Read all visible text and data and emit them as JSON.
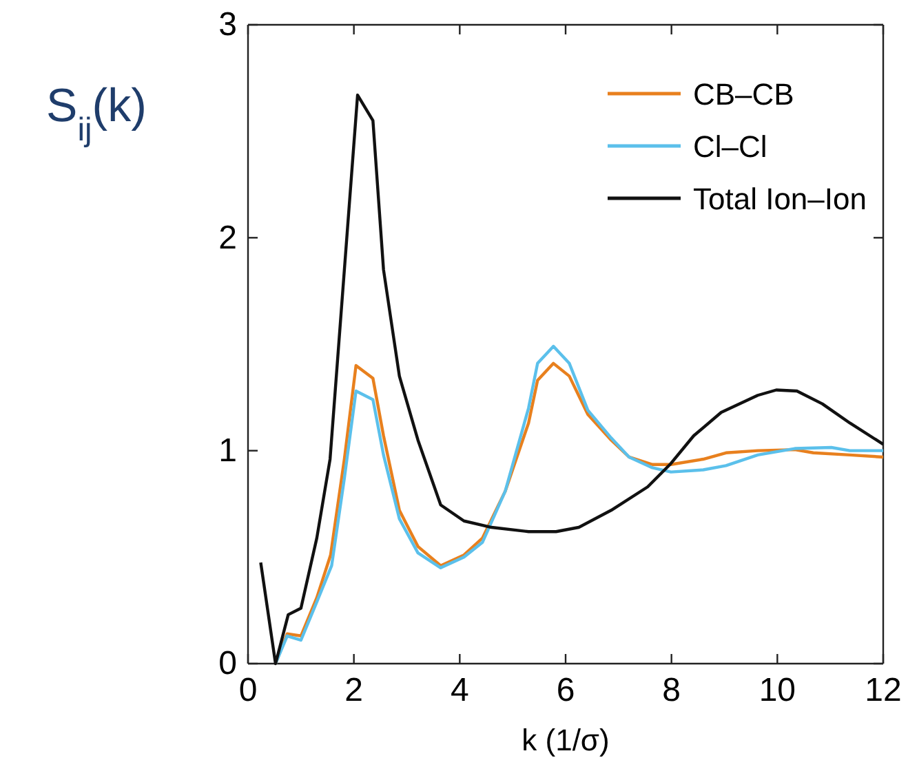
{
  "chart_data": {
    "type": "line",
    "ylabel": "S$_{ij}$(k)",
    "xlabel": "k (1/σ)",
    "xlim": [
      0,
      12
    ],
    "ylim": [
      0,
      3
    ],
    "xticks": [
      0,
      2,
      4,
      6,
      8,
      10,
      12
    ],
    "yticks": [
      0,
      1,
      2,
      3
    ],
    "legend": "top right",
    "grid": false,
    "line_style": "solid",
    "marker": "none",
    "series": [
      {
        "name": "CB–CB",
        "color": "#e8801e",
        "x": [
          0.52,
          0.74,
          1.0,
          1.3,
          1.56,
          1.82,
          2.04,
          2.36,
          2.56,
          2.86,
          3.21,
          3.64,
          4.08,
          4.43,
          4.86,
          5.3,
          5.47,
          5.77,
          6.07,
          6.42,
          6.86,
          7.2,
          7.64,
          7.99,
          8.6,
          9.03,
          9.63,
          10.33,
          10.68,
          11.37,
          12
        ],
        "values": [
          0,
          0.14,
          0.13,
          0.31,
          0.51,
          0.96,
          1.4,
          1.34,
          1.07,
          0.72,
          0.55,
          0.46,
          0.51,
          0.59,
          0.81,
          1.13,
          1.33,
          1.41,
          1.35,
          1.17,
          1.05,
          0.97,
          0.935,
          0.935,
          0.96,
          0.99,
          1.0,
          1.005,
          0.99,
          0.98,
          0.97
        ]
      },
      {
        "name": "Cl–Cl",
        "color": "#5bc0eb",
        "x": [
          0.52,
          0.74,
          1.0,
          1.3,
          1.58,
          1.82,
          2.04,
          2.36,
          2.56,
          2.86,
          3.21,
          3.64,
          4.08,
          4.43,
          4.86,
          5.3,
          5.47,
          5.77,
          6.07,
          6.42,
          6.86,
          7.2,
          7.64,
          7.99,
          8.6,
          9.03,
          9.63,
          10.33,
          11.02,
          11.37,
          12
        ],
        "values": [
          0,
          0.13,
          0.11,
          0.29,
          0.46,
          0.87,
          1.28,
          1.24,
          0.98,
          0.68,
          0.52,
          0.45,
          0.5,
          0.57,
          0.81,
          1.2,
          1.41,
          1.49,
          1.41,
          1.19,
          1.06,
          0.97,
          0.92,
          0.9,
          0.91,
          0.93,
          0.98,
          1.01,
          1.015,
          1.0,
          1.0
        ]
      },
      {
        "name": "Total Ion–Ion",
        "color": "#111111",
        "x": [
          0.24,
          0.52,
          0.76,
          1.0,
          1.3,
          1.55,
          2.07,
          2.36,
          2.56,
          2.86,
          3.21,
          3.64,
          4.08,
          4.6,
          5.3,
          5.82,
          6.25,
          6.86,
          7.55,
          7.99,
          8.42,
          8.94,
          9.63,
          9.98,
          10.37,
          10.85,
          11.37,
          12
        ],
        "values": [
          0.475,
          0,
          0.23,
          0.26,
          0.59,
          0.96,
          2.67,
          2.55,
          1.85,
          1.35,
          1.05,
          0.745,
          0.67,
          0.64,
          0.62,
          0.62,
          0.64,
          0.72,
          0.83,
          0.94,
          1.07,
          1.18,
          1.26,
          1.285,
          1.28,
          1.22,
          1.13,
          1.03
        ]
      }
    ]
  }
}
